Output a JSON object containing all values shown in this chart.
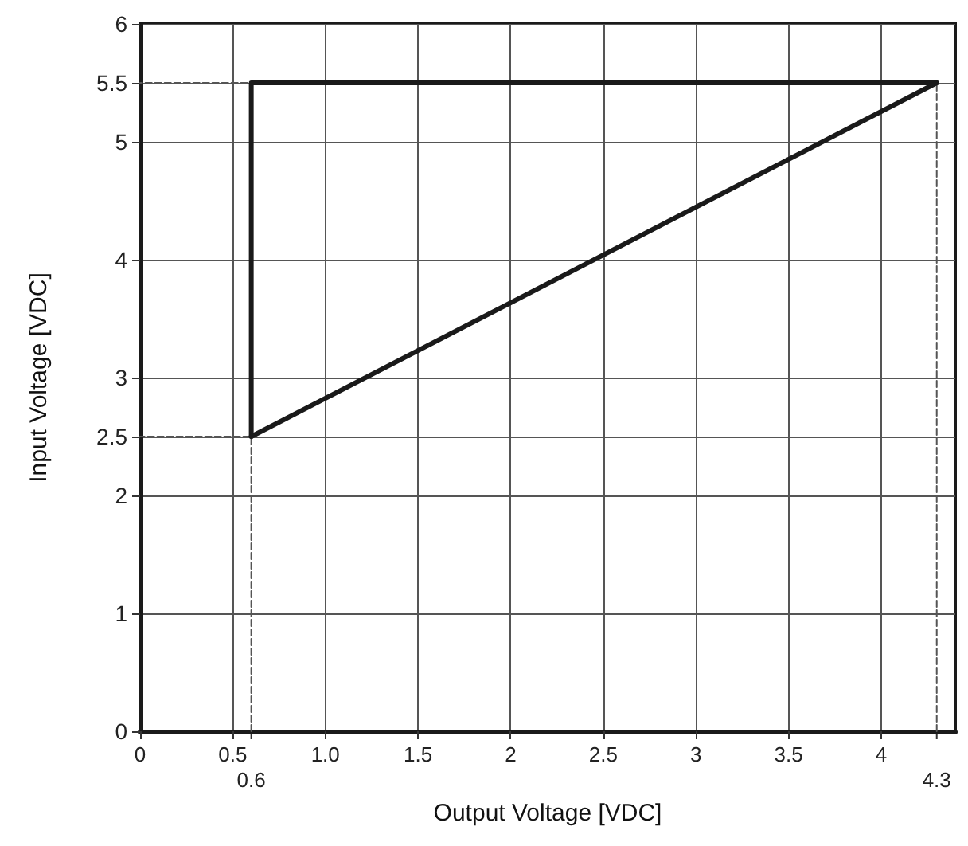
{
  "chart_data": {
    "type": "line",
    "xlabel": "Output Voltage [VDC]",
    "ylabel": "Input Voltage [VDC]",
    "series": [
      {
        "color": "#1a1a1a",
        "x": [
          0.6,
          0.6,
          4.3
        ],
        "values": [
          2.5,
          5.5,
          5.5
        ],
        "line_style": "solid"
      },
      {
        "color": "#1a1a1a",
        "x": [
          0.6,
          4.3
        ],
        "values": [
          2.5,
          5.5
        ],
        "line_style": "solid"
      },
      {
        "color": "#555555",
        "x": [
          0.6,
          0.6,
          0
        ],
        "values": [
          0,
          2.5,
          2.5
        ],
        "line_style": "dashed"
      },
      {
        "color": "#555555",
        "x": [
          4.3,
          4.3,
          0
        ],
        "values": [
          0,
          5.5,
          5.5
        ],
        "line_style": "dashed"
      }
    ],
    "annotations": [
      {
        "text": "0.6",
        "x": 0.6,
        "y": 0
      },
      {
        "text": "4.3",
        "x": 4.3,
        "y": 0
      }
    ],
    "xlim": [
      0,
      4.4
    ],
    "xticks": [
      0,
      0.5,
      {
        "value": 1,
        "label": "1.0"
      },
      1.5,
      2,
      2.5,
      3,
      3.5,
      4
    ],
    "ylim": [
      0,
      6
    ],
    "yticks": [
      0,
      1,
      2,
      2.5,
      3,
      4,
      5,
      5.5,
      6
    ],
    "grid": true,
    "marker": "none"
  }
}
